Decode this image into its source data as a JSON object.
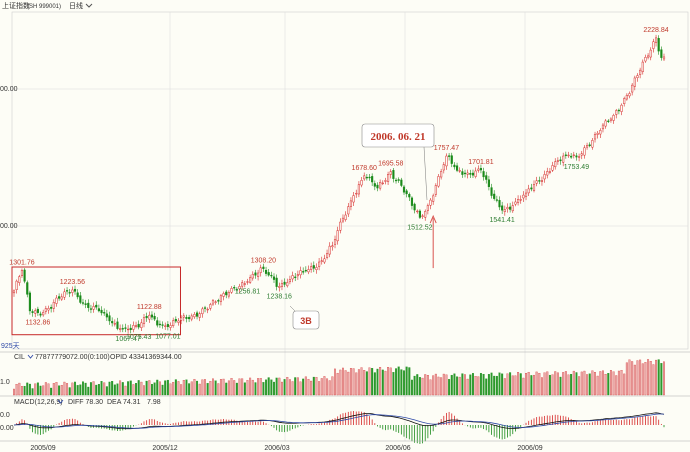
{
  "header": {
    "title": "上证指数",
    "code": "(SH 999001)",
    "period": "日线",
    "period_icon": "chevron-down-icon"
  },
  "volume_panel": {
    "indicator": "CIL",
    "values": "77877779072.00(0:100)",
    "extra": "OPID 43341369344.00",
    "axis_label": "1.0"
  },
  "macd_panel": {
    "indicator": "MACD(12,26,9)",
    "diff": "DIFF 78.30",
    "dea": "DEA 74.31",
    "macd": "7.98",
    "axis_labels": [
      "0.0",
      "0.00"
    ]
  },
  "annotations": {
    "date_box": "2006. 06. 21",
    "box_3b": "3B",
    "left_bottom": "925天"
  },
  "colors": {
    "up": "#d62a2a",
    "down": "#1a8a1a",
    "price_label_red": "#c0392b",
    "price_label_green": "#2e7d32",
    "box_border": "#c62828",
    "arrow": "#d9534f",
    "diff_line": "#111111",
    "dea_line": "#2f4aa8",
    "grid": "#dadada"
  },
  "chart_data": {
    "type": "candlestick",
    "title": "",
    "x_ticks": [
      "2005/09",
      "2005/12",
      "2006/03",
      "2006/06",
      "2006/09"
    ],
    "y_ticks": [
      "00.00",
      "00.00"
    ],
    "ylim": [
      1000,
      2300
    ],
    "close_path": [
      [
        0,
        1220
      ],
      [
        3,
        1301.76
      ],
      [
        6,
        1140
      ],
      [
        9,
        1132.86
      ],
      [
        13,
        1150
      ],
      [
        17,
        1190
      ],
      [
        22,
        1223.56
      ],
      [
        27,
        1165
      ],
      [
        32,
        1140
      ],
      [
        36,
        1100
      ],
      [
        40,
        1070
      ],
      [
        43,
        1067.47
      ],
      [
        47,
        1075.43
      ],
      [
        51,
        1122.88
      ],
      [
        55,
        1085
      ],
      [
        58,
        1077.01
      ],
      [
        62,
        1100
      ],
      [
        67,
        1120
      ],
      [
        72,
        1150
      ],
      [
        77,
        1180
      ],
      [
        82,
        1230
      ],
      [
        88,
        1256.81
      ],
      [
        94,
        1308.2
      ],
      [
        98,
        1265
      ],
      [
        100,
        1238.16
      ],
      [
        104,
        1265
      ],
      [
        110,
        1300
      ],
      [
        116,
        1340
      ],
      [
        120,
        1400
      ],
      [
        124,
        1510
      ],
      [
        128,
        1600
      ],
      [
        132,
        1678.6
      ],
      [
        137,
        1630
      ],
      [
        142,
        1695.58
      ],
      [
        146,
        1640
      ],
      [
        150,
        1560
      ],
      [
        153,
        1512.52
      ],
      [
        156,
        1560
      ],
      [
        159,
        1640
      ],
      [
        163,
        1757.47
      ],
      [
        167,
        1700
      ],
      [
        171,
        1690
      ],
      [
        176,
        1701.81
      ],
      [
        180,
        1600
      ],
      [
        184,
        1541.41
      ],
      [
        188,
        1560
      ],
      [
        193,
        1610
      ],
      [
        198,
        1660
      ],
      [
        203,
        1720
      ],
      [
        208,
        1760
      ],
      [
        212,
        1753.49
      ],
      [
        216,
        1800
      ],
      [
        221,
        1860
      ],
      [
        226,
        1920
      ],
      [
        231,
        2000
      ],
      [
        236,
        2100
      ],
      [
        240,
        2180
      ],
      [
        242,
        2228.84
      ],
      [
        244,
        2150
      ]
    ],
    "price_labels": [
      {
        "text": "1301.76",
        "x": 3,
        "y": 1301.76,
        "pos": "above",
        "color": "red"
      },
      {
        "text": "1132.86",
        "x": 9,
        "y": 1132.86,
        "pos": "below",
        "color": "red"
      },
      {
        "text": "1223.56",
        "x": 22,
        "y": 1223.56,
        "pos": "above",
        "color": "red"
      },
      {
        "text": "1067.47",
        "x": 43,
        "y": 1067.47,
        "pos": "below",
        "color": "green"
      },
      {
        "text": "1075.43",
        "x": 47,
        "y": 1075.43,
        "pos": "below",
        "color": "green"
      },
      {
        "text": "1122.88",
        "x": 51,
        "y": 1122.88,
        "pos": "above",
        "color": "red"
      },
      {
        "text": "1077.01",
        "x": 58,
        "y": 1077.01,
        "pos": "below",
        "color": "green"
      },
      {
        "text": "1256.81",
        "x": 88,
        "y": 1256.81,
        "pos": "below",
        "color": "green"
      },
      {
        "text": "1308.20",
        "x": 94,
        "y": 1308.2,
        "pos": "above",
        "color": "red"
      },
      {
        "text": "1238.16",
        "x": 100,
        "y": 1238.16,
        "pos": "below",
        "color": "green"
      },
      {
        "text": "1678.60",
        "x": 132,
        "y": 1678.6,
        "pos": "above",
        "color": "red"
      },
      {
        "text": "1695.58",
        "x": 142,
        "y": 1695.58,
        "pos": "above",
        "color": "red"
      },
      {
        "text": "1512.52",
        "x": 153,
        "y": 1512.52,
        "pos": "below",
        "color": "green"
      },
      {
        "text": "1757.47",
        "x": 163,
        "y": 1757.47,
        "pos": "above",
        "color": "red"
      },
      {
        "text": "1701.81",
        "x": 176,
        "y": 1701.81,
        "pos": "above",
        "color": "red"
      },
      {
        "text": "1541.41",
        "x": 184,
        "y": 1541.41,
        "pos": "below",
        "color": "green"
      },
      {
        "text": "1753.49",
        "x": 212,
        "y": 1753.49,
        "pos": "below",
        "color": "green"
      },
      {
        "text": "2228.84",
        "x": 242,
        "y": 2228.84,
        "pos": "above",
        "color": "red"
      }
    ],
    "highlight_box": {
      "x_start": 0,
      "x_end": 62,
      "y_low": 1045,
      "y_high": 1315
    },
    "arrow_point": {
      "x": 158,
      "y": 1530
    },
    "callout_3b": {
      "x": 101,
      "y": 1180
    }
  }
}
